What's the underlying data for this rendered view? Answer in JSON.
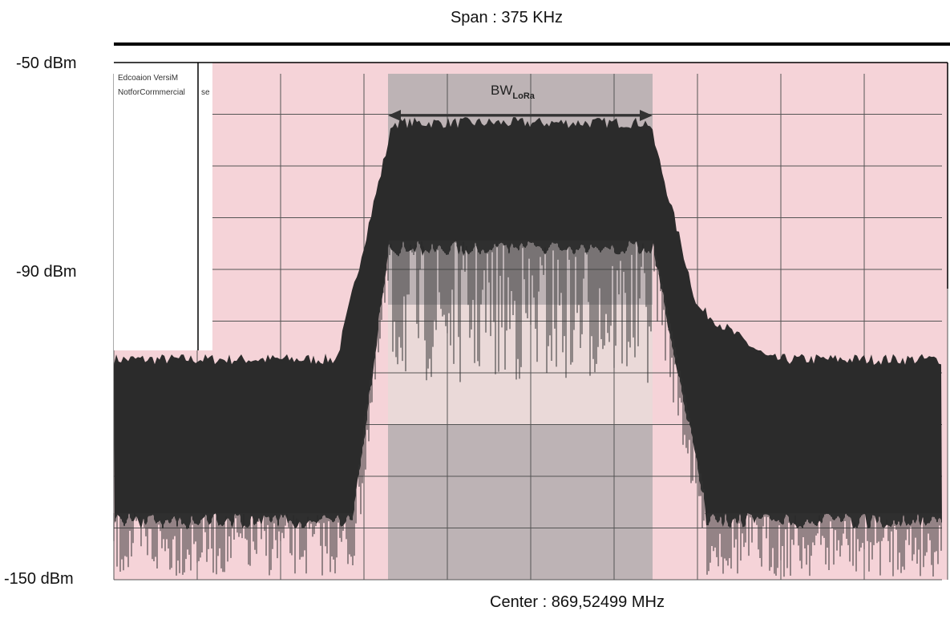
{
  "header": {
    "span": "Span : 375 KHz",
    "center": "Center : 869,52499 MHz"
  },
  "axis_labels": [
    "-50 dBm",
    "-90 dBm",
    "-150 dBm"
  ],
  "annotation": {
    "main": "BW",
    "sub": "LoRa"
  },
  "watermark": [
    "Edcoaion VersiM",
    "NotforCormmercial",
    "se"
  ]
}
